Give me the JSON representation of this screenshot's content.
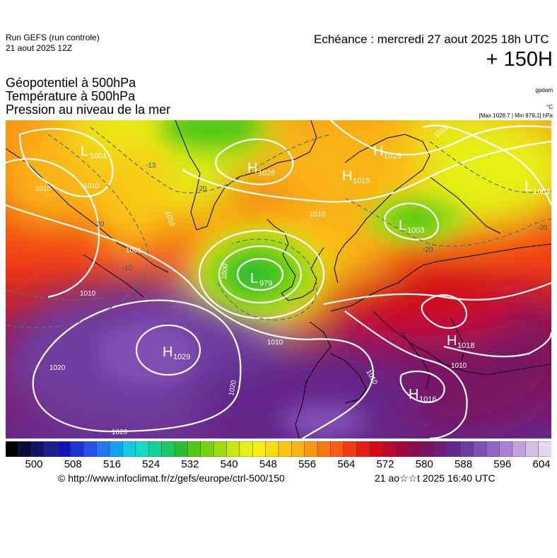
{
  "header": {
    "run_model": "Run GEFS (run controle)",
    "run_date": "21 aout 2025 12Z",
    "echeance": "Echéance : mercredi 27 aout 2025 18h UTC",
    "lead_time": "+ 150H",
    "fields": [
      "Géopotentiel à 500hPa",
      "Température à 500hPa",
      "Pression au niveau de la mer"
    ],
    "unit_geopotential": "gpdam",
    "unit_temperature": "°C",
    "pressure_range": "[Max 1028.7 | Min 979.1] hPa"
  },
  "pressure_centers": [
    {
      "type": "L",
      "value": "1001"
    },
    {
      "type": "H",
      "value": "1026"
    },
    {
      "type": "H",
      "value": "1015"
    },
    {
      "type": "H",
      "value": "1015"
    },
    {
      "type": "L",
      "value": "1002"
    },
    {
      "type": "L",
      "value": "1003"
    },
    {
      "type": "L",
      "value": "979"
    },
    {
      "type": "H",
      "value": "1029"
    },
    {
      "type": "H",
      "value": "1018"
    },
    {
      "type": "H",
      "value": "1016"
    }
  ],
  "isobar_labels": [
    "1010",
    "1010",
    "1010",
    "1010",
    "1010",
    "1001",
    "1010",
    "1010",
    "1020",
    "1020",
    "1020",
    "1010",
    "1010",
    "1000"
  ],
  "isotherm_labels": [
    "-20",
    "-20",
    "-20",
    "-10",
    "-10",
    "-13",
    "-20"
  ],
  "colorbar": {
    "ticks": [
      "500",
      "508",
      "516",
      "524",
      "532",
      "540",
      "548",
      "556",
      "564",
      "572",
      "580",
      "588",
      "596",
      "604"
    ],
    "colors": [
      "#000000",
      "#0a0a3c",
      "#141464",
      "#1e1e8c",
      "#1414b4",
      "#1e32d2",
      "#2850e6",
      "#1e78f0",
      "#14a0f0",
      "#14c8e6",
      "#14dcc8",
      "#14d296",
      "#1ec864",
      "#28be32",
      "#50c814",
      "#78d214",
      "#a0dc14",
      "#c8e614",
      "#e6f014",
      "#faf014",
      "#fadc14",
      "#fac814",
      "#fab414",
      "#fa9614",
      "#fa7814",
      "#fa5a14",
      "#f03c14",
      "#e61e14",
      "#d20a14",
      "#be0a28",
      "#a0083c",
      "#8c0a50",
      "#781464",
      "#6e1e78",
      "#64288c",
      "#6e3ca0",
      "#8250b4",
      "#9664c8",
      "#aa82d2",
      "#c3a0dc",
      "#d7bee6",
      "#e6d7f0"
    ]
  },
  "footer": {
    "credit": "© http://www.infoclimat.fr/z/gefs/europe/ctrl-500/150",
    "generated": "21 ao☆☆t 2025 16:40 UTC"
  }
}
